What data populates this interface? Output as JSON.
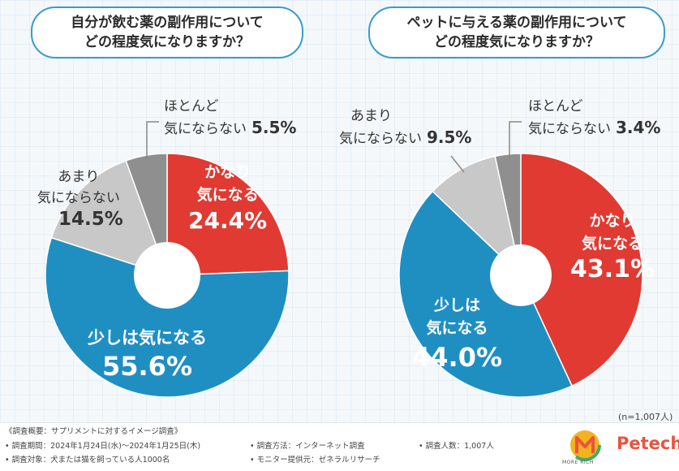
{
  "questions": {
    "left": [
      "自分が飲む薬の副作用について",
      "どの程度気になりますか？"
    ],
    "right": [
      "ペットに与える薬の副作用について",
      "どの程度気になりますか？"
    ]
  },
  "chart_data": [
    {
      "type": "pie",
      "title": "自分が飲む薬の副作用についてどの程度気になりますか？",
      "categories": [
        "かなり気になる",
        "少しは気になる",
        "あまり気にならない",
        "ほとんど気にならない"
      ],
      "values": [
        24.4,
        55.6,
        14.5,
        5.5
      ],
      "labels": [
        "24.4%",
        "55.6%",
        "14.5%",
        "5.5%"
      ],
      "colors": [
        "#e03a32",
        "#1f8fc2",
        "#c8c8c8",
        "#8f8f8f"
      ]
    },
    {
      "type": "pie",
      "title": "ペットに与える薬の副作用についてどの程度気になりますか？",
      "categories": [
        "かなり気になる",
        "少しは気になる",
        "あまり気にならない",
        "ほとんど気にならない"
      ],
      "values": [
        43.1,
        44.0,
        9.5,
        3.4
      ],
      "labels": [
        "43.1%",
        "44.0%",
        "9.5%",
        "3.4%"
      ],
      "colors": [
        "#e03a32",
        "#1f8fc2",
        "#c8c8c8",
        "#8f8f8f"
      ]
    }
  ],
  "labels": {
    "left_kanari_1": "かなり",
    "left_kanari_2": "気になる",
    "left_sukoshi": "少しは気になる",
    "left_amari_1": "あまり",
    "left_amari_2": "気にならない",
    "left_hotondo_1": "ほとんど",
    "left_hotondo_2": "気にならない",
    "right_kanari_1": "かなり",
    "right_kanari_2": "気になる",
    "right_sukoshi_1": "少しは",
    "right_sukoshi_2": "気になる",
    "right_amari_1": "あまり",
    "right_amari_2": "気にならない",
    "right_hotondo_1": "ほとんど",
    "right_hotondo_2": "気にならない"
  },
  "n_label": "(n=1,007人)",
  "footer": {
    "overview": "《調査概要：サプリメントに対するイメージ調査》",
    "period": "• 調査期間：2024年1月24日(水)～2024年1月25日(木)",
    "target": "• 調査対象：犬または猫を飼っている人1000名",
    "method": "• 調査方法：インターネット調査",
    "provider": "• モニター提供元：ゼネラルリサーチ",
    "count": "• 調査人数：1,007人"
  },
  "logos": {
    "more_rich": "MORE RICH",
    "petech": "Petech"
  }
}
